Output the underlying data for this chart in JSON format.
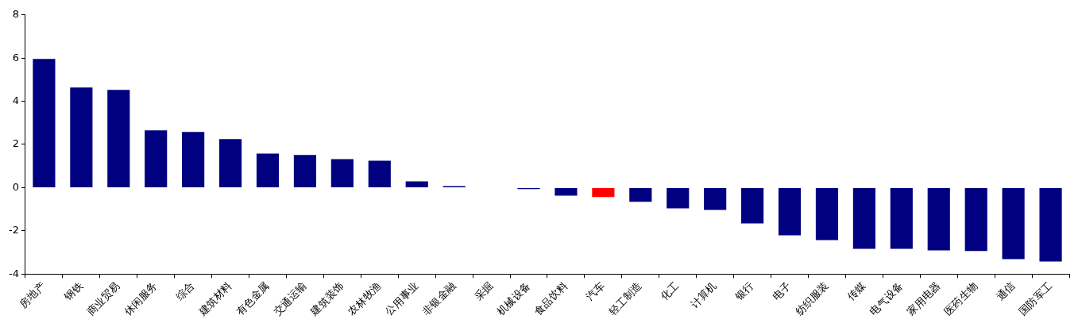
{
  "chart_data": {
    "type": "bar",
    "categories": [
      "房地产",
      "钢铁",
      "商业贸易",
      "休闲服务",
      "综合",
      "建筑材料",
      "有色金属",
      "交通运输",
      "建筑装饰",
      "农林牧渔",
      "公用事业",
      "非银金融",
      "采掘",
      "机械设备",
      "食品饮料",
      "汽车",
      "轻工制造",
      "化工",
      "计算机",
      "银行",
      "电子",
      "纺织服装",
      "传媒",
      "电气设备",
      "家用电器",
      "医药生物",
      "通信",
      "国防军工"
    ],
    "values": [
      5.96,
      4.64,
      4.53,
      2.65,
      2.58,
      2.25,
      1.58,
      1.51,
      1.32,
      1.25,
      0.29,
      0.07,
      null,
      -0.07,
      -0.37,
      -0.44,
      -0.66,
      -0.96,
      -1.03,
      -1.66,
      -2.21,
      -2.43,
      -2.83,
      -2.83,
      -2.91,
      -2.94,
      -3.31,
      -3.42
    ],
    "colors": [
      "#000080",
      "#000080",
      "#000080",
      "#000080",
      "#000080",
      "#000080",
      "#000080",
      "#000080",
      "#000080",
      "#000080",
      "#000080",
      "#000080",
      "#000080",
      "#000080",
      "#000080",
      "#ff0000",
      "#000080",
      "#000080",
      "#000080",
      "#000080",
      "#000080",
      "#000080",
      "#000080",
      "#000080",
      "#000080",
      "#000080",
      "#000080",
      "#000080"
    ],
    "ylim": [
      -4,
      8
    ],
    "yticks": [
      -4,
      -2,
      0,
      2,
      4,
      6,
      8
    ],
    "grid": false,
    "legend": false
  }
}
